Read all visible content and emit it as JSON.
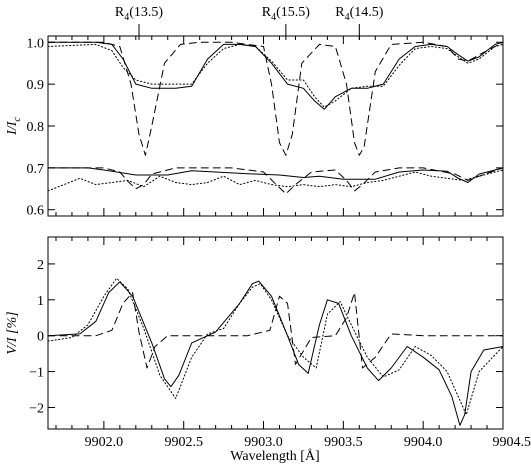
{
  "chart_data": [
    {
      "type": "line",
      "xlabel": "",
      "ylabel": "I/I_c",
      "ylabel_main": "I/I",
      "ylabel_sub": "c",
      "xlim": [
        9901.65,
        9904.5
      ],
      "ylim": [
        0.585,
        1.015
      ],
      "yticks": [
        0.6,
        0.7,
        0.8,
        0.9,
        1.0
      ],
      "ytick_labels": [
        "0.6",
        "0.7",
        "0.8",
        "0.9",
        "1.0"
      ],
      "line_annotations": [
        {
          "text_main": "R",
          "text_sub": "4",
          "text_rest": "(13.5)",
          "x": 9902.22
        },
        {
          "text_main": "R",
          "text_sub": "4",
          "text_rest": "(15.5)",
          "x": 9903.14
        },
        {
          "text_main": "R",
          "text_sub": "4",
          "text_rest": "(14.5)",
          "x": 9903.6
        }
      ],
      "series": [
        {
          "style": "solid",
          "x": [
            9901.65,
            9901.95,
            9902.05,
            9902.12,
            9902.2,
            9902.3,
            9902.45,
            9902.55,
            9902.65,
            9902.75,
            9902.85,
            9902.95,
            9903.05,
            9903.15,
            9903.25,
            9903.32,
            9903.38,
            9903.45,
            9903.55,
            9903.65,
            9903.75,
            9903.85,
            9903.95,
            9904.05,
            9904.15,
            9904.22,
            9904.28,
            9904.35,
            9904.45,
            9904.5
          ],
          "y": [
            1.0,
            1.0,
            0.995,
            0.96,
            0.9,
            0.89,
            0.89,
            0.895,
            0.96,
            0.995,
            0.995,
            0.99,
            0.95,
            0.9,
            0.89,
            0.86,
            0.84,
            0.87,
            0.89,
            0.89,
            0.9,
            0.96,
            0.99,
            0.995,
            0.99,
            0.97,
            0.955,
            0.965,
            0.995,
            1.0
          ]
        },
        {
          "style": "dotted",
          "x": [
            9901.65,
            9901.95,
            9902.05,
            9902.12,
            9902.2,
            9902.3,
            9902.45,
            9902.55,
            9902.65,
            9902.75,
            9902.85,
            9902.95,
            9903.05,
            9903.15,
            9903.25,
            9903.32,
            9903.38,
            9903.45,
            9903.55,
            9903.65,
            9903.75,
            9903.85,
            9903.95,
            9904.05,
            9904.15,
            9904.22,
            9904.28,
            9904.35,
            9904.45,
            9904.5
          ],
          "y": [
            0.99,
            0.995,
            0.98,
            0.94,
            0.91,
            0.9,
            0.9,
            0.9,
            0.95,
            0.985,
            0.995,
            0.99,
            0.955,
            0.91,
            0.91,
            0.87,
            0.845,
            0.86,
            0.89,
            0.895,
            0.895,
            0.945,
            0.985,
            0.99,
            0.985,
            0.965,
            0.95,
            0.96,
            0.99,
            0.995
          ]
        },
        {
          "style": "dashed",
          "x": [
            9901.65,
            9902.0,
            9902.1,
            9902.17,
            9902.22,
            9902.26,
            9902.3,
            9902.38,
            9902.48,
            9902.6,
            9902.8,
            9903.0,
            9903.05,
            9903.1,
            9903.14,
            9903.18,
            9903.24,
            9903.35,
            9903.45,
            9903.52,
            9903.57,
            9903.6,
            9903.63,
            9903.7,
            9903.8,
            9904.0,
            9904.15,
            9904.22,
            9904.28,
            9904.35,
            9904.5
          ],
          "y": [
            1.0,
            1.0,
            0.99,
            0.9,
            0.78,
            0.73,
            0.8,
            0.95,
            0.995,
            1.0,
            1.0,
            0.99,
            0.9,
            0.76,
            0.73,
            0.78,
            0.95,
            0.995,
            0.99,
            0.9,
            0.76,
            0.73,
            0.75,
            0.93,
            0.995,
            1.0,
            0.99,
            0.96,
            0.955,
            0.97,
            1.0
          ]
        },
        {
          "style": "solid",
          "x": [
            9901.65,
            9901.9,
            9902.0,
            9902.2,
            9902.4,
            9902.55,
            9902.7,
            9902.9,
            9903.1,
            9903.25,
            9903.35,
            9903.5,
            9903.7,
            9903.85,
            9904.0,
            9904.15,
            9904.22,
            9904.28,
            9904.35,
            9904.5
          ],
          "y": [
            0.7,
            0.7,
            0.695,
            0.683,
            0.683,
            0.693,
            0.69,
            0.686,
            0.683,
            0.677,
            0.68,
            0.673,
            0.673,
            0.69,
            0.695,
            0.692,
            0.675,
            0.665,
            0.685,
            0.7
          ]
        },
        {
          "style": "dotted",
          "x": [
            9901.65,
            9901.75,
            9901.85,
            9901.95,
            9902.05,
            9902.15,
            9902.25,
            9902.35,
            9902.45,
            9902.55,
            9902.65,
            9902.75,
            9902.85,
            9902.95,
            9903.05,
            9903.15,
            9903.25,
            9903.35,
            9903.45,
            9903.55,
            9903.65,
            9903.75,
            9903.85,
            9903.95,
            9904.05,
            9904.15,
            9904.25,
            9904.35,
            9904.45,
            9904.5
          ],
          "y": [
            0.645,
            0.66,
            0.675,
            0.66,
            0.665,
            0.67,
            0.655,
            0.68,
            0.665,
            0.66,
            0.665,
            0.68,
            0.66,
            0.67,
            0.66,
            0.655,
            0.66,
            0.655,
            0.66,
            0.655,
            0.665,
            0.67,
            0.68,
            0.69,
            0.68,
            0.675,
            0.67,
            0.68,
            0.69,
            0.695
          ]
        },
        {
          "style": "dashed",
          "x": [
            9901.65,
            9902.0,
            9902.1,
            9902.15,
            9902.2,
            9902.25,
            9902.3,
            9902.45,
            9902.6,
            9902.8,
            9903.0,
            9903.08,
            9903.14,
            9903.2,
            9903.3,
            9903.45,
            9903.52,
            9903.57,
            9903.62,
            9903.7,
            9903.85,
            9904.0,
            9904.2,
            9904.28,
            9904.35,
            9904.5
          ],
          "y": [
            0.7,
            0.7,
            0.69,
            0.668,
            0.65,
            0.66,
            0.685,
            0.7,
            0.7,
            0.7,
            0.69,
            0.66,
            0.638,
            0.66,
            0.69,
            0.695,
            0.67,
            0.645,
            0.66,
            0.69,
            0.7,
            0.7,
            0.685,
            0.67,
            0.68,
            0.7
          ]
        }
      ]
    },
    {
      "type": "line",
      "xlabel": "Wavelength [Å]",
      "ylabel": "V/I [%]",
      "xlim": [
        9901.65,
        9904.5
      ],
      "ylim": [
        -2.6,
        2.75
      ],
      "xticks": [
        9902.0,
        9902.5,
        9903.0,
        9903.5,
        9904.0,
        9904.5
      ],
      "xtick_labels": [
        "9902.0",
        "9902.5",
        "9903.0",
        "9903.5",
        "9904.0",
        "9904.5"
      ],
      "yticks": [
        -2,
        -1,
        0,
        1,
        2
      ],
      "ytick_labels": [
        "−2",
        "−1",
        "0",
        "1",
        "2"
      ],
      "series": [
        {
          "style": "solid",
          "x": [
            9901.65,
            9901.85,
            9901.95,
            9902.03,
            9902.1,
            9902.18,
            9902.3,
            9902.38,
            9902.42,
            9902.47,
            9902.55,
            9902.7,
            9902.85,
            9902.93,
            9902.97,
            9903.05,
            9903.15,
            9903.22,
            9903.28,
            9903.35,
            9903.4,
            9903.47,
            9903.55,
            9903.65,
            9903.72,
            9903.8,
            9903.9,
            9904.0,
            9904.1,
            9904.18,
            9904.23,
            9904.26,
            9904.3,
            9904.38,
            9904.5
          ],
          "y": [
            0,
            0.05,
            0.4,
            1.2,
            1.5,
            1.1,
            -0.2,
            -1.2,
            -1.42,
            -1.1,
            -0.2,
            0.1,
            0.9,
            1.45,
            1.52,
            1.1,
            0.0,
            -0.8,
            -1.05,
            0.3,
            1.0,
            0.9,
            0.0,
            -0.9,
            -1.25,
            -0.9,
            -0.3,
            -0.6,
            -0.95,
            -1.7,
            -2.5,
            -2.2,
            -1.0,
            -0.4,
            -0.3
          ]
        },
        {
          "style": "dotted",
          "x": [
            9901.65,
            9901.8,
            9901.9,
            9902.0,
            9902.08,
            9902.15,
            9902.25,
            9902.35,
            9902.45,
            9902.55,
            9902.65,
            9902.75,
            9902.85,
            9902.93,
            9902.98,
            9903.05,
            9903.15,
            9903.25,
            9903.33,
            9903.4,
            9903.48,
            9903.55,
            9903.65,
            9903.75,
            9903.85,
            9903.95,
            9904.05,
            9904.15,
            9904.22,
            9904.27,
            9904.35,
            9904.5
          ],
          "y": [
            -0.15,
            -0.05,
            0.3,
            1.1,
            1.6,
            1.3,
            0.2,
            -1.1,
            -1.75,
            -0.6,
            0.05,
            0.2,
            0.9,
            1.35,
            1.45,
            1.0,
            0.0,
            -0.6,
            -0.9,
            0.6,
            0.95,
            0.3,
            -0.6,
            -1.15,
            -0.95,
            -0.3,
            -0.55,
            -1.0,
            -1.7,
            -2.2,
            -1.0,
            -0.3
          ]
        },
        {
          "style": "dashed",
          "x": [
            9901.65,
            9901.95,
            9902.05,
            9902.12,
            9902.18,
            9902.22,
            9902.27,
            9902.32,
            9902.4,
            9902.9,
            9903.04,
            9903.1,
            9903.15,
            9903.2,
            9903.3,
            9903.45,
            9903.52,
            9903.57,
            9903.62,
            9903.7,
            9903.8,
            9904.0,
            9904.2,
            9904.5
          ],
          "y": [
            0,
            0,
            0.15,
            0.9,
            1.2,
            0.1,
            -0.9,
            -0.3,
            0,
            0,
            0.15,
            1.1,
            0.9,
            -0.8,
            -0.05,
            0,
            0.5,
            1.2,
            -0.9,
            -0.6,
            0.05,
            0,
            0,
            0
          ]
        }
      ]
    }
  ]
}
